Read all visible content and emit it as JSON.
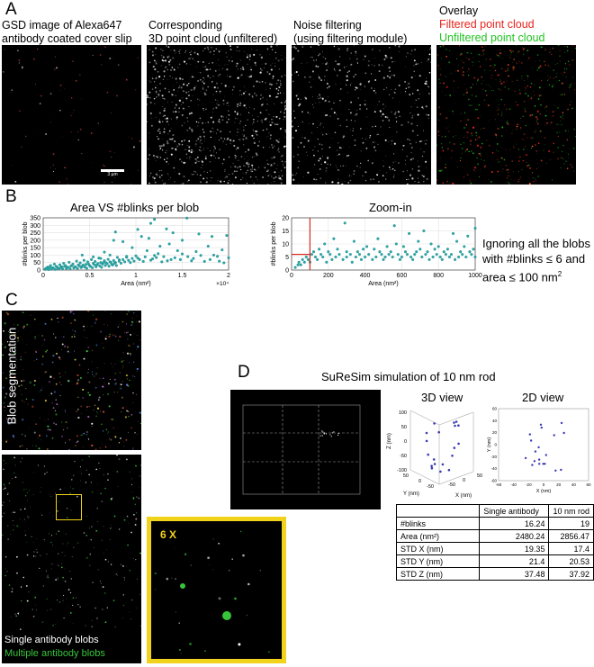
{
  "panel_a": {
    "letter": "A",
    "captions": [
      {
        "line1": "GSD image of Alexa647",
        "line2": "antibody coated cover slip"
      },
      {
        "line1": "Corresponding",
        "line2": "3D point cloud (unfiltered)"
      },
      {
        "line1": "Noise filtering",
        "line2": "(using filtering module)"
      },
      {
        "line1": "Overlay",
        "line2": "Filtered point cloud",
        "line3": "Unfiltered point cloud"
      }
    ],
    "colors": {
      "filtered": "#e8231b",
      "unfiltered": "#22c422"
    },
    "scalebar": "3 µm"
  },
  "panel_b": {
    "letter": "B",
    "note": {
      "line1": "Ignoring all the blobs",
      "line2": "with #blinks ≤ 6 and",
      "line3": "area ≤ 100 nm",
      "sup": "2"
    },
    "threshold": {
      "blinks": 6,
      "area": 100
    }
  },
  "chart_data": [
    {
      "type": "scatter",
      "title": "Area VS #blinks per blob",
      "xlabel": "Area (nm²)",
      "ylabel": "#blinks per blob",
      "xlim": [
        0,
        20000
      ],
      "ylim": [
        0,
        350
      ],
      "x_ticks": [
        "0",
        "0.5",
        "1",
        "1.5",
        "2"
      ],
      "x_exponent": "×10⁴",
      "y_ticks": [
        "0",
        "50",
        "100",
        "150",
        "200",
        "250",
        "300",
        "350"
      ],
      "grid": true,
      "color": "#2aa8a8",
      "points": [
        [
          12000,
          340
        ],
        [
          15500,
          348
        ],
        [
          11600,
          313
        ],
        [
          13300,
          276
        ],
        [
          10200,
          272
        ],
        [
          7800,
          255
        ],
        [
          11400,
          213
        ],
        [
          14000,
          250
        ],
        [
          16800,
          242
        ],
        [
          19800,
          232
        ],
        [
          10600,
          225
        ],
        [
          18200,
          225
        ],
        [
          15000,
          200
        ],
        [
          7600,
          199
        ],
        [
          8600,
          190
        ],
        [
          13600,
          175
        ],
        [
          12600,
          160
        ],
        [
          17800,
          160
        ],
        [
          9600,
          150
        ],
        [
          11200,
          130
        ],
        [
          14500,
          130
        ],
        [
          16500,
          124
        ],
        [
          19300,
          135
        ],
        [
          6600,
          120
        ],
        [
          12400,
          110
        ],
        [
          15000,
          108
        ],
        [
          18400,
          100
        ],
        [
          20000,
          82
        ],
        [
          7200,
          100
        ],
        [
          9000,
          85
        ],
        [
          10200,
          80
        ],
        [
          11800,
          75
        ],
        [
          13800,
          70
        ],
        [
          16000,
          62
        ],
        [
          17400,
          58
        ],
        [
          4200,
          100
        ],
        [
          5400,
          88
        ],
        [
          6200,
          78
        ],
        [
          8200,
          68
        ],
        [
          12800,
          55
        ],
        [
          19500,
          48
        ],
        [
          500,
          20
        ],
        [
          800,
          30
        ],
        [
          1000,
          15
        ],
        [
          1200,
          40
        ],
        [
          1400,
          25
        ],
        [
          1600,
          10
        ],
        [
          1800,
          35
        ],
        [
          2000,
          22
        ],
        [
          2200,
          45
        ],
        [
          2400,
          30
        ],
        [
          2600,
          18
        ],
        [
          2800,
          52
        ],
        [
          3000,
          28
        ],
        [
          3200,
          40
        ],
        [
          3400,
          20
        ],
        [
          3600,
          60
        ],
        [
          3800,
          35
        ],
        [
          4000,
          48
        ],
        [
          4200,
          25
        ],
        [
          4400,
          65
        ],
        [
          4600,
          38
        ],
        [
          4800,
          55
        ],
        [
          5000,
          30
        ],
        [
          5200,
          70
        ],
        [
          5400,
          45
        ],
        [
          5600,
          58
        ],
        [
          5800,
          35
        ],
        [
          6000,
          80
        ],
        [
          6200,
          50
        ],
        [
          6400,
          40
        ],
        [
          6600,
          62
        ],
        [
          6800,
          48
        ],
        [
          7000,
          72
        ],
        [
          7200,
          55
        ],
        [
          7400,
          38
        ],
        [
          7600,
          64
        ],
        [
          7800,
          50
        ],
        [
          8000,
          85
        ],
        [
          8200,
          60
        ],
        [
          8400,
          45
        ],
        [
          8600,
          70
        ],
        [
          8800,
          55
        ],
        [
          9000,
          92
        ],
        [
          9200,
          65
        ],
        [
          9400,
          50
        ],
        [
          9600,
          78
        ],
        [
          9800,
          60
        ],
        [
          10000,
          95
        ],
        [
          10400,
          70
        ],
        [
          10800,
          58
        ],
        [
          11000,
          88
        ],
        [
          11600,
          66
        ],
        [
          12000,
          98
        ],
        [
          12200,
          84
        ],
        [
          13000,
          90
        ],
        [
          13400,
          62
        ],
        [
          14200,
          82
        ],
        [
          14800,
          70
        ],
        [
          15600,
          90
        ],
        [
          16200,
          78
        ],
        [
          17000,
          98
        ],
        [
          18000,
          70
        ],
        [
          18800,
          92
        ],
        [
          19000,
          60
        ],
        [
          200,
          5
        ],
        [
          300,
          12
        ],
        [
          400,
          8
        ],
        [
          600,
          3
        ],
        [
          700,
          18
        ],
        [
          900,
          6
        ],
        [
          1100,
          14
        ],
        [
          1300,
          4
        ],
        [
          1500,
          20
        ],
        [
          1700,
          9
        ],
        [
          1900,
          16
        ],
        [
          2100,
          7
        ],
        [
          2300,
          25
        ],
        [
          2500,
          11
        ],
        [
          2700,
          19
        ],
        [
          2900,
          8
        ],
        [
          3100,
          30
        ],
        [
          3300,
          14
        ],
        [
          3500,
          22
        ],
        [
          3700,
          10
        ],
        [
          3900,
          28
        ],
        [
          4100,
          16
        ],
        [
          4300,
          34
        ],
        [
          4500,
          20
        ],
        [
          4700,
          12
        ],
        [
          4900,
          40
        ],
        [
          5100,
          24
        ],
        [
          5300,
          15
        ],
        [
          5500,
          36
        ],
        [
          5700,
          22
        ],
        [
          5900,
          44
        ],
        [
          6100,
          28
        ],
        [
          6300,
          18
        ],
        [
          6500,
          50
        ],
        [
          6700,
          30
        ],
        [
          6900,
          42
        ],
        [
          7100,
          26
        ],
        [
          7300,
          52
        ],
        [
          7500,
          34
        ],
        [
          7700,
          46
        ],
        [
          7900,
          30
        ]
      ]
    },
    {
      "type": "scatter",
      "title": "Zoom-in",
      "xlabel": "Area (nm²)",
      "ylabel": "#blinks per blob",
      "xlim": [
        0,
        1000
      ],
      "ylim": [
        0,
        20
      ],
      "x_ticks": [
        "0",
        "200",
        "400",
        "600",
        "800",
        "1000"
      ],
      "y_ticks": [
        "0",
        "5",
        "10",
        "15",
        "20"
      ],
      "grid": true,
      "color": "#2aa8a8",
      "points": [
        [
          290,
          18
        ],
        [
          560,
          17
        ],
        [
          720,
          15
        ],
        [
          1000,
          16
        ],
        [
          230,
          12
        ],
        [
          640,
          14
        ],
        [
          880,
          14
        ],
        [
          960,
          13
        ],
        [
          180,
          10
        ],
        [
          340,
          11
        ],
        [
          470,
          12
        ],
        [
          570,
          10
        ],
        [
          690,
          11
        ],
        [
          760,
          10
        ],
        [
          900,
          11
        ],
        [
          410,
          9
        ],
        [
          520,
          9
        ],
        [
          610,
          9
        ],
        [
          800,
          9
        ],
        [
          940,
          9
        ],
        [
          150,
          8
        ],
        [
          250,
          8
        ],
        [
          390,
          8
        ],
        [
          450,
          8
        ],
        [
          700,
          8
        ],
        [
          780,
          8
        ],
        [
          850,
          8
        ],
        [
          990,
          8
        ],
        [
          120,
          7
        ],
        [
          200,
          7
        ],
        [
          300,
          7
        ],
        [
          360,
          7
        ],
        [
          480,
          7
        ],
        [
          540,
          7
        ],
        [
          620,
          7
        ],
        [
          680,
          7
        ],
        [
          740,
          7
        ],
        [
          830,
          7
        ],
        [
          920,
          7
        ],
        [
          970,
          7
        ],
        [
          20,
          1
        ],
        [
          35,
          2
        ],
        [
          40,
          3
        ],
        [
          50,
          2
        ],
        [
          60,
          4
        ],
        [
          70,
          3
        ],
        [
          80,
          5
        ],
        [
          90,
          4
        ],
        [
          100,
          3
        ],
        [
          110,
          6
        ],
        [
          130,
          5
        ],
        [
          140,
          4
        ],
        [
          160,
          6
        ],
        [
          170,
          5
        ],
        [
          190,
          3
        ],
        [
          210,
          6
        ],
        [
          220,
          4
        ],
        [
          240,
          5
        ],
        [
          260,
          6
        ],
        [
          280,
          4
        ],
        [
          300,
          5
        ],
        [
          320,
          6
        ],
        [
          330,
          3
        ],
        [
          350,
          5
        ],
        [
          370,
          6
        ],
        [
          380,
          4
        ],
        [
          400,
          5
        ],
        [
          420,
          6
        ],
        [
          440,
          4
        ],
        [
          460,
          5
        ],
        [
          490,
          6
        ],
        [
          500,
          4
        ],
        [
          510,
          5
        ],
        [
          530,
          6
        ],
        [
          550,
          5
        ],
        [
          580,
          6
        ],
        [
          590,
          4
        ],
        [
          600,
          5
        ],
        [
          630,
          6
        ],
        [
          650,
          5
        ],
        [
          660,
          4
        ],
        [
          670,
          6
        ],
        [
          710,
          5
        ],
        [
          730,
          6
        ],
        [
          750,
          4
        ],
        [
          770,
          5
        ],
        [
          790,
          6
        ],
        [
          810,
          5
        ],
        [
          820,
          4
        ],
        [
          840,
          6
        ],
        [
          860,
          5
        ],
        [
          870,
          6
        ],
        [
          890,
          4
        ],
        [
          910,
          5
        ],
        [
          930,
          6
        ],
        [
          950,
          5
        ],
        [
          980,
          6
        ],
        [
          1000,
          5
        ]
      ]
    }
  ],
  "panel_c": {
    "letter": "C",
    "top_label": "Blob segmentation",
    "legend_single": "Single antibody blobs",
    "legend_multiple": "Multiple antibody blobs",
    "zoom_label": "6 X",
    "colors": {
      "single": "#ffffff",
      "multiple": "#37c43a",
      "highlight": "#f2d31b"
    }
  },
  "panel_d": {
    "letter": "D",
    "title": "SuReSim simulation of 10 nm rod",
    "view3d": {
      "title": "3D view",
      "zlabel": "Z (nm)",
      "xlabel": "X (nm)",
      "ylabel": "Y (nm)",
      "z_ticks": [
        "100",
        "50",
        "0",
        "-50",
        "-100"
      ],
      "x_ticks": [
        "50",
        "0",
        "-50"
      ],
      "y_ticks": [
        "50",
        "0",
        "-50"
      ]
    },
    "view2d": {
      "title": "2D view",
      "xlabel": "X (nm)",
      "ylabel": "Y (nm)",
      "x_ticks": [
        "-60",
        "-40",
        "-20",
        "0",
        "20",
        "40",
        "60"
      ],
      "y_ticks": [
        "60",
        "40",
        "20",
        "0",
        "-20",
        "-40",
        "-60"
      ]
    },
    "table": {
      "headers": [
        "",
        "Single antibody",
        "10 nm rod"
      ],
      "rows": [
        {
          "label": "#blinks",
          "single": "16.24",
          "rod": "19"
        },
        {
          "label": "Area (nm²)",
          "single": "2480.24",
          "rod": "2856.47"
        },
        {
          "label": "STD X (nm)",
          "single": "19.35",
          "rod": "17.4"
        },
        {
          "label": "STD Y (nm)",
          "single": "21.4",
          "rod": "20.53"
        },
        {
          "label": "STD Z (nm)",
          "single": "37.48",
          "rod": "37.92"
        }
      ]
    }
  }
}
